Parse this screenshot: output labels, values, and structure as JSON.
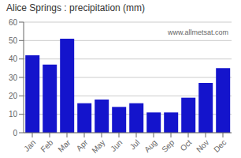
{
  "chart_data": {
    "type": "bar",
    "title": "Alice Springs : precipitation (mm)",
    "categories": [
      "Jan",
      "Feb",
      "Mar",
      "Apr",
      "May",
      "Jun",
      "Jul",
      "Aug",
      "Sep",
      "Oct",
      "Nov",
      "Dec"
    ],
    "values": [
      42,
      37,
      51,
      16,
      18,
      14,
      16,
      11,
      11,
      19,
      27,
      35
    ],
    "color": "#1414cc",
    "ylim": [
      0,
      60
    ],
    "yticks": [
      0,
      10,
      20,
      30,
      40,
      50,
      60
    ],
    "grid": true,
    "annotations": [
      "www.allmetsat.com"
    ]
  }
}
